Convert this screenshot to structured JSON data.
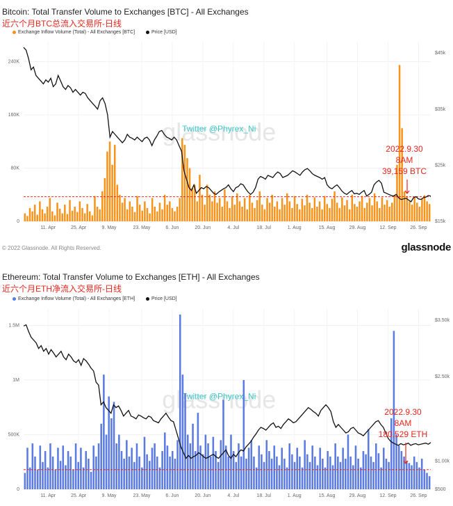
{
  "colors": {
    "btc_bar": "#f7931a",
    "eth_bar": "#5b7be0",
    "price": "#111111",
    "threshold": "#e8261d",
    "annotation": "#e8261d",
    "twitter": "#3ec7c7"
  },
  "footer": {
    "copyright": "© 2022 Glassnode. All Rights Reserved.",
    "brand": "glassnode"
  },
  "chart_data": [
    {
      "type": "bar",
      "title": "Bitcoin: Total Transfer Volume to Exchanges [BTC] - All Exchanges",
      "subtitle": "近六个月BTC总流入交易所-日线",
      "legend": [
        "Exchange Inflow Volume (Total) - All Exchanges [BTC]",
        "Price [USD]"
      ],
      "watermark": "glassnode",
      "overlay_text": "Twitter @Phyrex_Ni",
      "annotation": [
        "2022.9.30",
        "8AM",
        "39,159 BTC"
      ],
      "x_ticks": [
        "11. Apr",
        "25. Apr",
        "9. May",
        "23. May",
        "6. Jun",
        "20. Jun",
        "4. Jul",
        "18. Jul",
        "1. Aug",
        "15. Aug",
        "29. Aug",
        "12. Sep",
        "26. Sep"
      ],
      "y_ticks": [
        "0",
        "80K",
        "160K",
        "240K"
      ],
      "y2_ticks": [
        "$15k",
        "$25k",
        "$35k",
        "$45k"
      ],
      "ylim": [
        0,
        270000
      ],
      "y2lim": [
        15000,
        47000
      ],
      "y2_scale": "log",
      "threshold": 37000,
      "series": [
        {
          "name": "Exchange Inflow Volume (Total) - All Exchanges [BTC]",
          "type": "bar",
          "values": [
            12000,
            8000,
            20000,
            15000,
            25000,
            10000,
            30000,
            18000,
            12000,
            22000,
            35000,
            15000,
            9000,
            28000,
            19000,
            12000,
            25000,
            11000,
            32000,
            16000,
            22000,
            14000,
            30000,
            20000,
            12000,
            26000,
            15000,
            9000,
            38000,
            22000,
            18000,
            45000,
            65000,
            105000,
            120000,
            85000,
            115000,
            55000,
            40000,
            28000,
            35000,
            18000,
            30000,
            22000,
            14000,
            38000,
            25000,
            16000,
            30000,
            20000,
            12000,
            35000,
            22000,
            15000,
            28000,
            18000,
            40000,
            25000,
            30000,
            20000,
            15000,
            22000,
            35000,
            125000,
            115000,
            95000,
            80000,
            50000,
            55000,
            30000,
            70000,
            40000,
            25000,
            55000,
            40000,
            30000,
            45000,
            28000,
            35000,
            22000,
            48000,
            30000,
            20000,
            38000,
            25000,
            42000,
            30000,
            22000,
            35000,
            18000,
            40000,
            28000,
            20000,
            32000,
            45000,
            25000,
            18000,
            35000,
            28000,
            40000,
            22000,
            30000,
            18000,
            35000,
            25000,
            42000,
            30000,
            20000,
            38000,
            26000,
            18000,
            34000,
            24000,
            40000,
            28000,
            20000,
            36000,
            22000,
            30000,
            18000,
            38000,
            26000,
            20000,
            34000,
            45000,
            28000,
            20000,
            36000,
            24000,
            32000,
            18000,
            40000,
            26000,
            22000,
            30000,
            38000,
            20000,
            28000,
            35000,
            24000,
            42000,
            30000,
            20000,
            36000,
            25000,
            32000,
            22000,
            28000,
            40000,
            85000,
            235000,
            140000,
            45000,
            38000,
            30000,
            25000,
            36000,
            28000,
            22000,
            34000,
            39159,
            30000,
            26000
          ],
          "source_len": 174
        },
        {
          "name": "Price [USD]",
          "values": [
            46000,
            45500,
            44000,
            42000,
            42500,
            41000,
            40500,
            40000,
            39500,
            40200,
            39800,
            40500,
            39000,
            39500,
            41000,
            40000,
            39000,
            38500,
            39200,
            38800,
            38000,
            38500,
            38000,
            37500,
            38000,
            37800,
            37000,
            36500,
            36000,
            35500,
            35000,
            36500,
            37000,
            36000,
            34000,
            30000,
            31000,
            30500,
            30000,
            29500,
            29000,
            29500,
            30500,
            30000,
            29800,
            29500,
            30000,
            29600,
            29200,
            29800,
            30000,
            29500,
            28500,
            29500,
            30200,
            31000,
            31200,
            30500,
            30000,
            29800,
            29500,
            30000,
            29500,
            28500,
            27500,
            24000,
            22500,
            21000,
            20500,
            21500,
            20000,
            20500,
            21000,
            20800,
            21200,
            21000,
            20500,
            20000,
            19800,
            20200,
            20500,
            20800,
            21000,
            21500,
            20800,
            20300,
            21000,
            21200,
            21700,
            21500,
            20800,
            20200,
            19800,
            20200,
            21000,
            22500,
            23000,
            22800,
            22500,
            23200,
            23000,
            22800,
            23400,
            23800,
            23500,
            22800,
            23000,
            23200,
            23600,
            24000,
            23800,
            23500,
            23200,
            23800,
            24200,
            24400,
            24000,
            23500,
            23200,
            23000,
            22800,
            22500,
            22800,
            21500,
            21000,
            20800,
            21200,
            21500,
            21000,
            20400,
            20000,
            19800,
            20200,
            20500,
            19900,
            20000,
            19800,
            20200,
            20500,
            19500,
            19800,
            20200,
            21500,
            22000,
            22300,
            21800,
            20200,
            20000,
            19800,
            19600,
            19500,
            19800,
            19200,
            18900,
            19000,
            19100,
            18800,
            18500,
            19200,
            19400,
            19000,
            18900,
            19200,
            19300,
            19600,
            19500
          ]
        }
      ]
    },
    {
      "type": "bar",
      "title": "Ethereum: Total Transfer Volume to Exchanges [ETH] - All Exchanges",
      "subtitle": "近六个月ETH净流入交易所-日线",
      "legend": [
        "Exchange Inflow Volume (Total) - All Exchanges [ETH]",
        "Price [USD]"
      ],
      "watermark": "glassnode",
      "overlay_text": "Twitter @Phyrex_Ni",
      "annotation": [
        "2022.9.30",
        "8AM",
        "180,529 ETH"
      ],
      "x_ticks": [
        "11. Apr",
        "25. Apr",
        "9. May",
        "23. May",
        "6. Jun",
        "20. Jun",
        "4. Jul",
        "18. Jul",
        "1. Aug",
        "15. Aug",
        "29. Aug",
        "12. Sep",
        "26. Sep"
      ],
      "y_ticks": [
        "0",
        "500K",
        "1M",
        "1.5M"
      ],
      "y2_ticks": [
        "$500",
        "$1.00k",
        "$2.50k",
        "$3.50k"
      ],
      "ylim": [
        0,
        1650000
      ],
      "threshold": 180000,
      "series": [
        {
          "name": "Exchange Inflow Volume (Total) - All Exchanges [ETH]",
          "type": "bar",
          "values": [
            150000,
            380000,
            200000,
            420000,
            300000,
            180000,
            400000,
            250000,
            350000,
            200000,
            420000,
            300000,
            180000,
            380000,
            260000,
            400000,
            220000,
            350000,
            300000,
            180000,
            420000,
            250000,
            380000,
            200000,
            350000,
            280000,
            160000,
            400000,
            300000,
            420000,
            600000,
            1050000,
            500000,
            850000,
            650000,
            800000,
            420000,
            500000,
            350000,
            280000,
            450000,
            300000,
            380000,
            250000,
            420000,
            300000,
            200000,
            480000,
            320000,
            260000,
            380000,
            420000,
            300000,
            200000,
            350000,
            520000,
            400000,
            300000,
            350000,
            280000,
            450000,
            1600000,
            1050000,
            880000,
            500000,
            420000,
            600000,
            350000,
            700000,
            400000,
            320000,
            500000,
            420000,
            300000,
            480000,
            350000,
            250000,
            450000,
            820000,
            400000,
            300000,
            500000,
            350000,
            250000,
            420000,
            300000,
            1000000,
            280000,
            380000,
            450000,
            300000,
            200000,
            400000,
            320000,
            250000,
            450000,
            350000,
            280000,
            400000,
            300000,
            220000,
            380000,
            280000,
            200000,
            420000,
            320000,
            250000,
            380000,
            300000,
            200000,
            450000,
            320000,
            250000,
            400000,
            300000,
            220000,
            380000,
            280000,
            200000,
            350000,
            300000,
            220000,
            420000,
            300000,
            250000,
            380000,
            280000,
            500000,
            300000,
            220000,
            400000,
            280000,
            200000,
            350000,
            320000,
            550000,
            300000,
            250000,
            420000,
            330000,
            200000,
            380000,
            280000,
            250000,
            650000,
            1450000,
            500000,
            400000,
            350000,
            300000,
            260000,
            240000,
            220000,
            300000,
            250000,
            200000,
            280000,
            180529,
            150000,
            120000
          ],
          "source_len": 164
        },
        {
          "name": "Price [USD]",
          "values": [
            3400,
            3420,
            3300,
            3200,
            3150,
            3100,
            3000,
            3050,
            2950,
            3000,
            2900,
            2980,
            2920,
            2850,
            2900,
            2950,
            2850,
            2800,
            2900,
            2850,
            2780,
            2750,
            2800,
            2700,
            2820,
            2780,
            2720,
            2650,
            2600,
            2400,
            2350,
            2000,
            2050,
            1950,
            1900,
            1850,
            2000,
            1950,
            1980,
            1900,
            1800,
            1850,
            1900,
            1800,
            1780,
            1750,
            1820,
            1800,
            1770,
            1750,
            1800,
            1780,
            1720,
            1700,
            1680,
            1750,
            1800,
            1850,
            1780,
            1720,
            1700,
            1550,
            1400,
            1250,
            1150,
            1050,
            1100,
            1050,
            1080,
            1100,
            1150,
            1120,
            1080,
            1050,
            1070,
            1100,
            1120,
            1080,
            1050,
            1100,
            1150,
            1200,
            1100,
            1050,
            1120,
            1080,
            1150,
            1200,
            1180,
            1250,
            1300,
            1350,
            1420,
            1480,
            1550,
            1600,
            1580,
            1550,
            1600,
            1650,
            1680,
            1600,
            1620,
            1580,
            1650,
            1700,
            1750,
            1720,
            1680,
            1700,
            1750,
            1800,
            1850,
            1900,
            1950,
            1920,
            1880,
            1850,
            1800,
            1900,
            1950,
            2000,
            1950,
            1880,
            1700,
            1600,
            1650,
            1600,
            1550,
            1500,
            1520,
            1580,
            1600,
            1550,
            1500,
            1480,
            1450,
            1500,
            1550,
            1600,
            1650,
            1700,
            1720,
            1650,
            1600,
            1500,
            1400,
            1350,
            1320,
            1300,
            1280,
            1310,
            1290,
            1300,
            1320,
            1280,
            1300,
            1310,
            1290,
            1300,
            1310,
            1320,
            1300,
            1330
          ]
        }
      ]
    }
  ]
}
